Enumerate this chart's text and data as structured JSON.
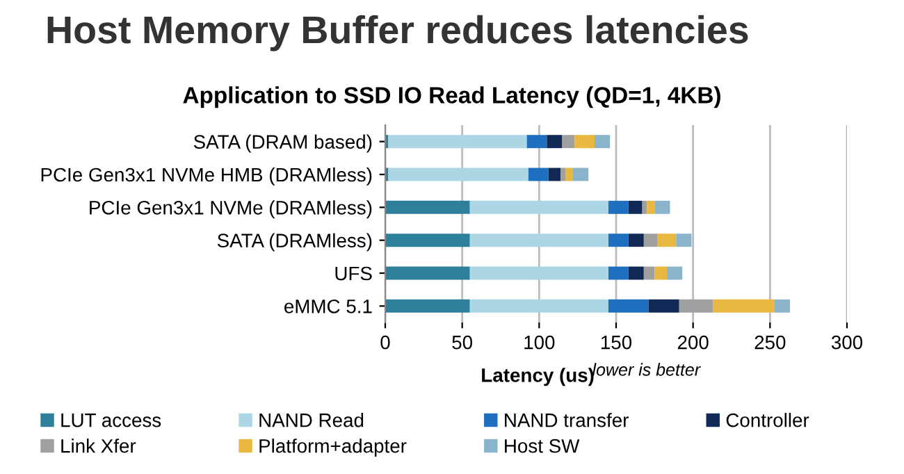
{
  "chart_data": {
    "type": "bar",
    "orientation": "horizontal",
    "stacked": true,
    "title": "Host Memory Buffer reduces latencies",
    "subtitle": "Application to SSD IO Read Latency (QD=1, 4KB)",
    "xlabel": "Latency (us)",
    "annotations": [
      "lower is better"
    ],
    "categories": [
      "SATA (DRAM based)",
      "PCIe Gen3x1 NVMe HMB (DRAMless)",
      "PCIe Gen3x1 NVMe (DRAMless)",
      "SATA (DRAMless)",
      "UFS",
      "eMMC 5.1"
    ],
    "series": [
      {
        "name": "LUT access",
        "color": "#2e7f9a",
        "values": [
          2,
          2,
          55,
          55,
          55,
          55
        ]
      },
      {
        "name": "NAND Read",
        "color": "#acd6e4",
        "values": [
          90,
          91,
          90,
          90,
          90,
          90
        ]
      },
      {
        "name": "NAND transfer",
        "color": "#1f6fc0",
        "values": [
          13,
          13,
          13,
          13,
          13,
          26
        ]
      },
      {
        "name": "Controller",
        "color": "#112a55",
        "values": [
          10,
          8,
          9,
          10,
          10,
          20
        ]
      },
      {
        "name": "Link Xfer",
        "color": "#a0a0a0",
        "values": [
          8,
          3,
          3,
          9,
          7,
          22
        ]
      },
      {
        "name": "Platform+adapter",
        "color": "#e8b840",
        "values": [
          13,
          5,
          5,
          12,
          8,
          40
        ]
      },
      {
        "name": "Host SW",
        "color": "#8ab4cc",
        "values": [
          10,
          10,
          10,
          10,
          10,
          10
        ]
      }
    ],
    "xlim": [
      0,
      300
    ],
    "xticks": [
      0,
      50,
      100,
      150,
      200,
      250,
      300
    ],
    "grid": "x",
    "legend": "bottom"
  }
}
